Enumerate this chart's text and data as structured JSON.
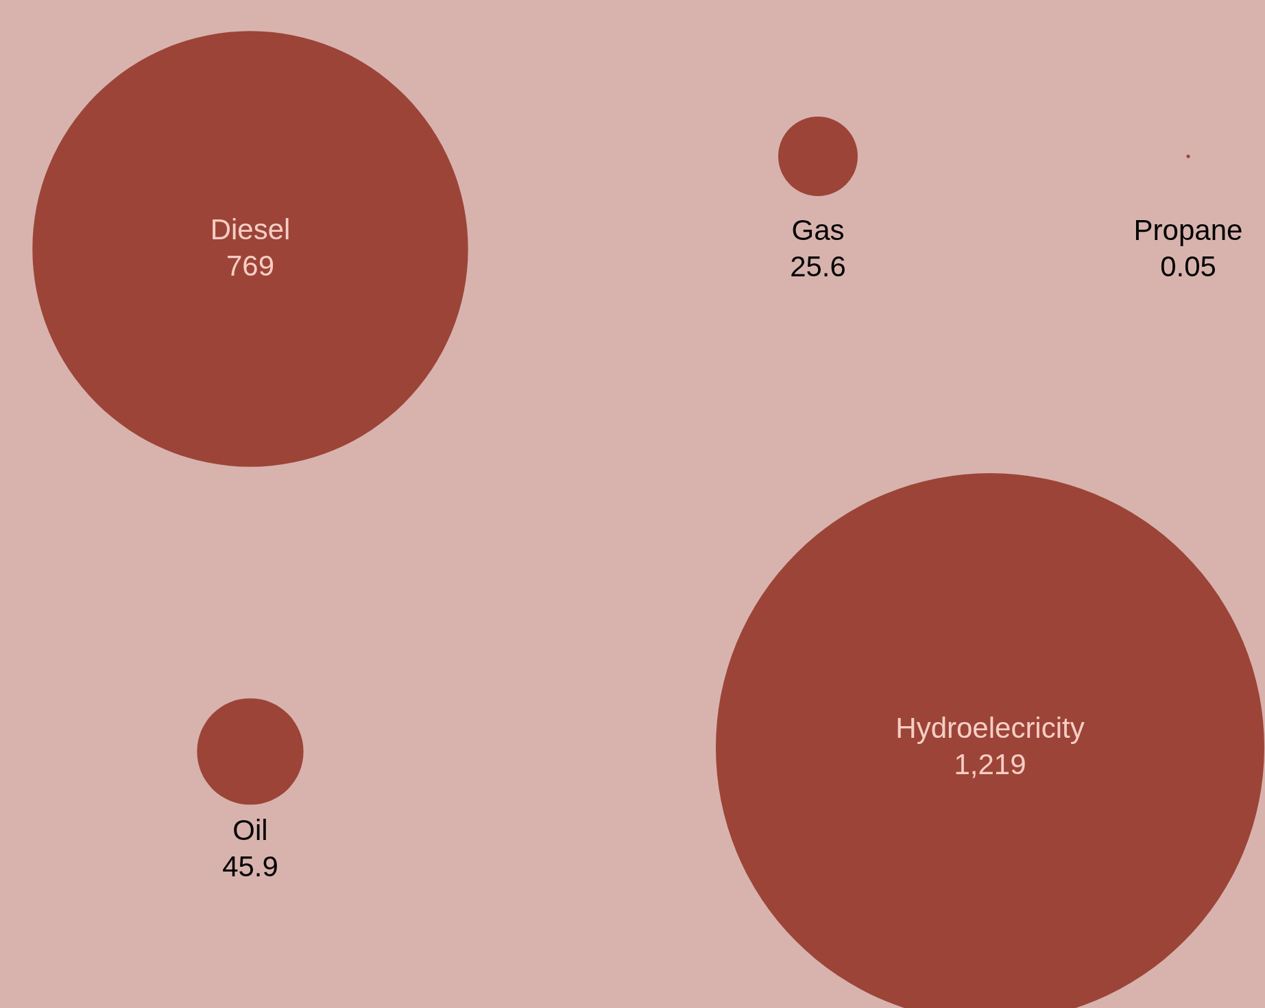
{
  "chart_data": {
    "type": "other",
    "categories": [
      "Diesel",
      "Gas",
      "Propane",
      "Oil",
      "Hydroelecricity"
    ],
    "values": [
      769,
      25.6,
      0.05,
      45.9,
      1219
    ],
    "value_labels": [
      "769",
      "25.6",
      "0.05",
      "45.9",
      "1,219"
    ],
    "color": "#9c4438"
  }
}
